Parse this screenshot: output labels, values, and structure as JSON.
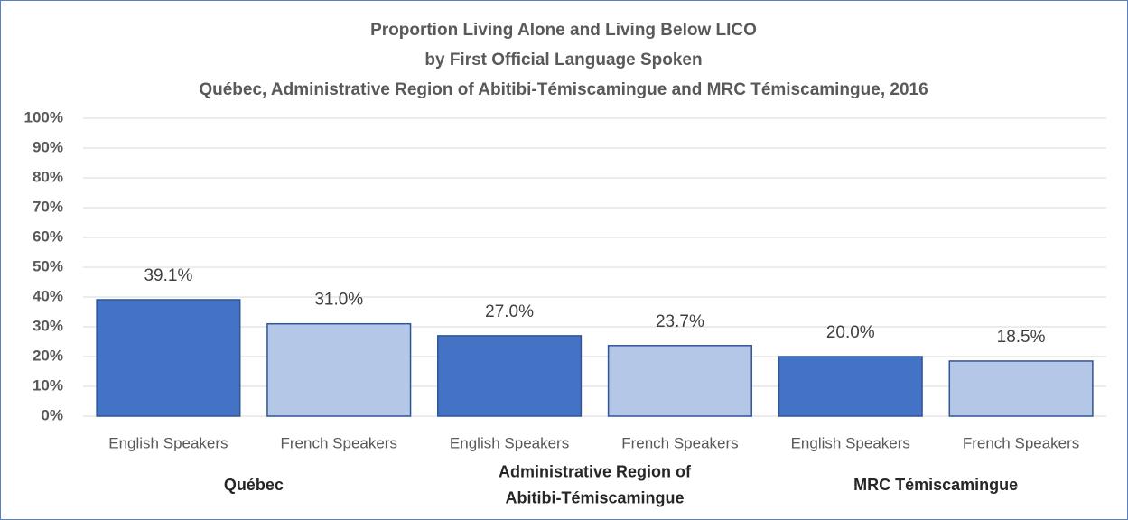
{
  "chart_data": {
    "type": "bar",
    "title": [
      "Proportion  Living Alone and Living Below LICO",
      "by First Official Language Spoken",
      "Québec, Administrative Region of Abitibi-Témiscamingue and MRC Témiscamingue, 2016"
    ],
    "colors": [
      "#4472c4",
      "#b4c7e7"
    ],
    "groups": [
      {
        "name": [
          "Québec"
        ],
        "categories": [
          "English Speakers",
          "French Speakers"
        ],
        "values": [
          39.1,
          31
        ],
        "value_labels": [
          "39.1%",
          "31.0%"
        ]
      },
      {
        "name": [
          "Administrative  Region of",
          "Abitibi-Témiscamingue"
        ],
        "categories": [
          "English Speakers",
          "French Speakers"
        ],
        "values": [
          27,
          23.7
        ],
        "value_labels": [
          "27.0%",
          "23.7%"
        ]
      },
      {
        "name": [
          "MRC Témiscamingue"
        ],
        "categories": [
          "English Speakers",
          "French Speakers"
        ],
        "values": [
          20,
          18.5
        ],
        "value_labels": [
          "20.0%",
          "18.5%"
        ]
      }
    ],
    "ylim": [
      0,
      100
    ],
    "yticks": [
      {
        "value": 0,
        "label": "0%"
      },
      {
        "value": 10,
        "label": "10%"
      },
      {
        "value": 20,
        "label": "20%"
      },
      {
        "value": 30,
        "label": "30%"
      },
      {
        "value": 40,
        "label": "40%"
      },
      {
        "value": 50,
        "label": "50%"
      },
      {
        "value": 60,
        "label": "60%"
      },
      {
        "value": 70,
        "label": "70%"
      },
      {
        "value": 80,
        "label": "80%"
      },
      {
        "value": 90,
        "label": "90%"
      },
      {
        "value": 100,
        "label": "100%"
      }
    ],
    "grid": true
  }
}
